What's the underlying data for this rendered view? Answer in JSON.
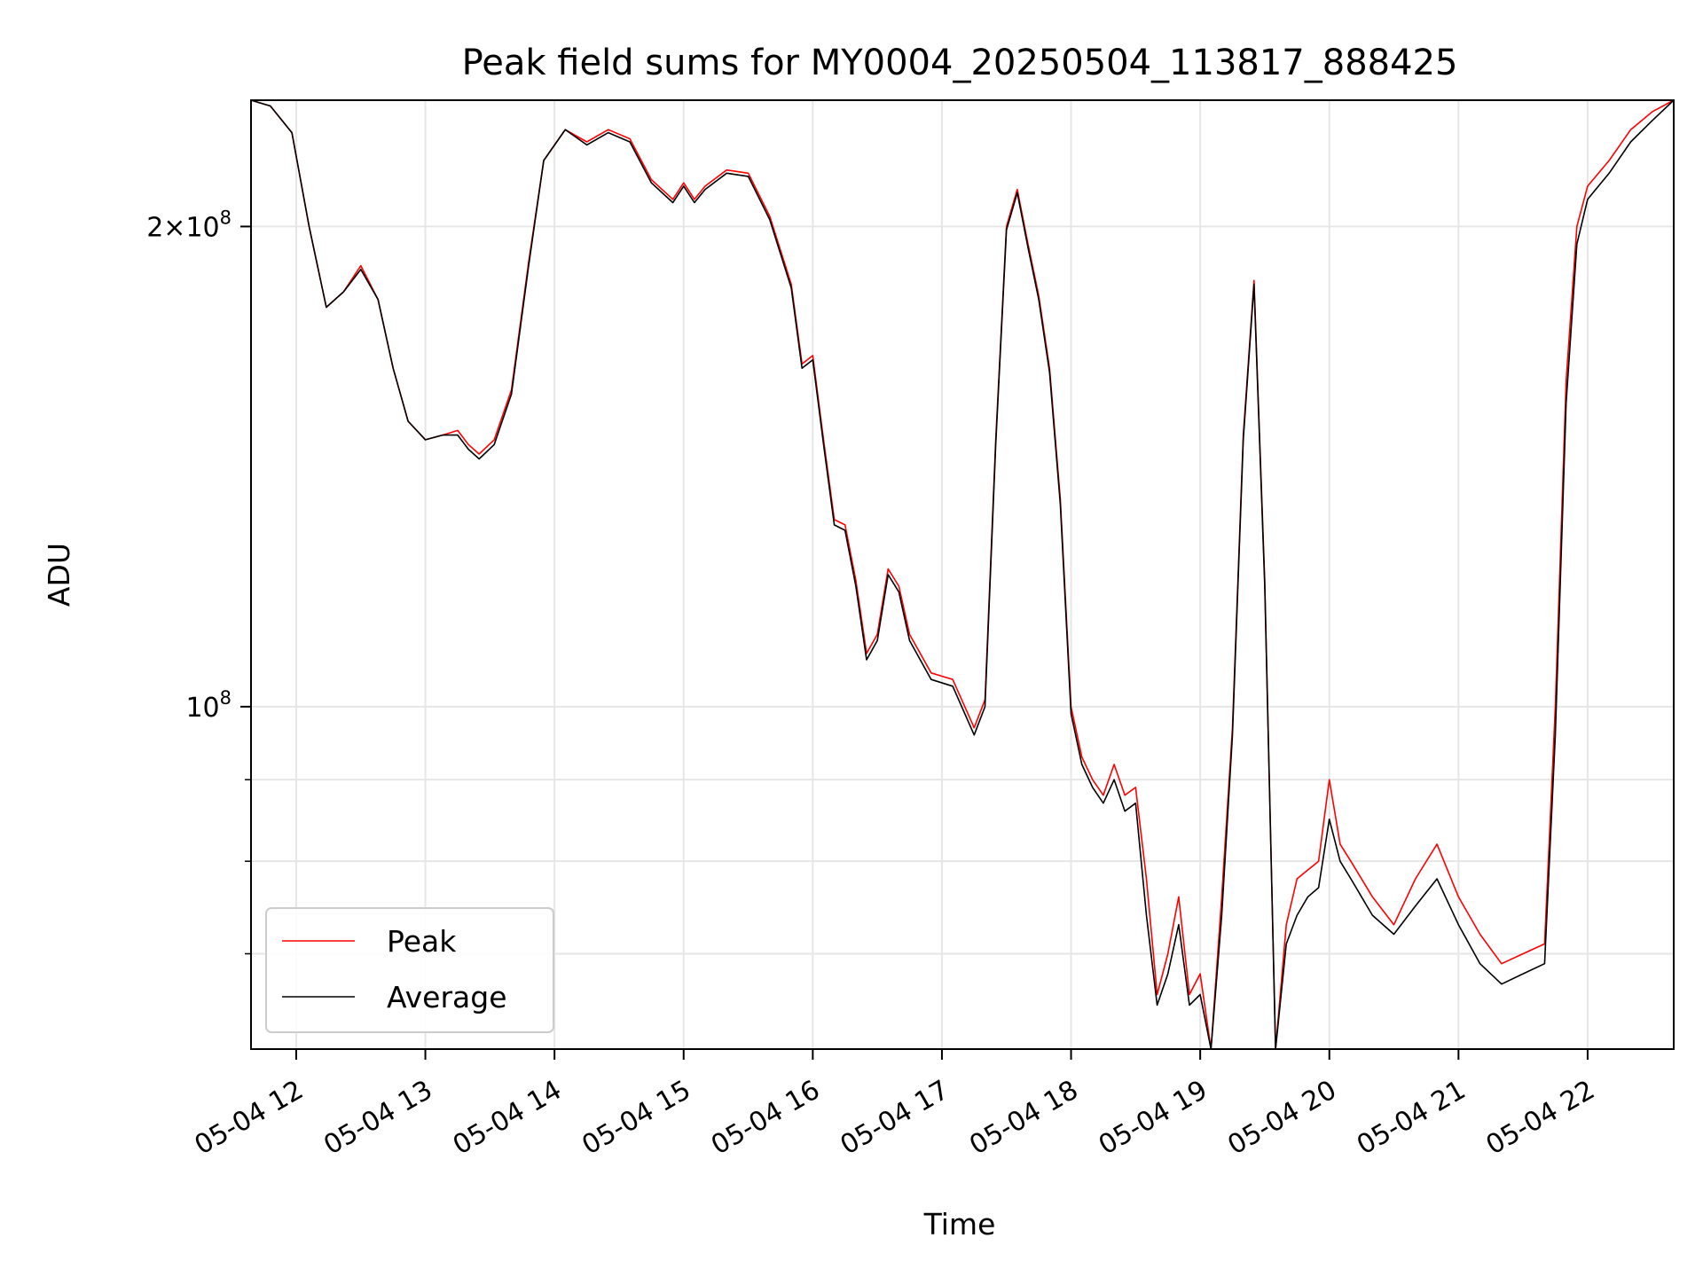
{
  "chart_data": {
    "type": "line",
    "title": "Peak field sums for MY0004_20250504_113817_888425",
    "xlabel": "Time",
    "ylabel": "ADU",
    "yscale": "log",
    "xlim": [
      "05-04 11:39",
      "05-04 22:40"
    ],
    "ylim": [
      61000000,
      240000000
    ],
    "x_ticks": [
      "05-04 12",
      "05-04 13",
      "05-04 14",
      "05-04 15",
      "05-04 16",
      "05-04 17",
      "05-04 18",
      "05-04 19",
      "05-04 20",
      "05-04 21",
      "05-04 22"
    ],
    "y_ticks": [
      {
        "value": 100000000,
        "base": "10",
        "exp": "8",
        "prefix": ""
      },
      {
        "value": 200000000,
        "base": "10",
        "exp": "8",
        "prefix": "2×"
      }
    ],
    "grid": true,
    "legend": "lower-left",
    "colors": {
      "Peak": "#ff0000",
      "Average": "#000000"
    },
    "x": [
      "05-04 11:39",
      "05-04 11:48",
      "05-04 11:58",
      "05-04 12:06",
      "05-04 12:14",
      "05-04 12:22",
      "05-04 12:30",
      "05-04 12:38",
      "05-04 12:45",
      "05-04 12:52",
      "05-04 13:00",
      "05-04 13:08",
      "05-04 13:15",
      "05-04 13:20",
      "05-04 13:25",
      "05-04 13:32",
      "05-04 13:40",
      "05-04 13:48",
      "05-04 13:55",
      "05-04 14:05",
      "05-04 14:15",
      "05-04 14:25",
      "05-04 14:35",
      "05-04 14:45",
      "05-04 14:55",
      "05-04 15:00",
      "05-04 15:05",
      "05-04 15:10",
      "05-04 15:20",
      "05-04 15:30",
      "05-04 15:40",
      "05-04 15:50",
      "05-04 15:55",
      "05-04 16:00",
      "05-04 16:05",
      "05-04 16:10",
      "05-04 16:15",
      "05-04 16:20",
      "05-04 16:25",
      "05-04 16:30",
      "05-04 16:35",
      "05-04 16:40",
      "05-04 16:45",
      "05-04 16:55",
      "05-04 17:05",
      "05-04 17:15",
      "05-04 17:20",
      "05-04 17:25",
      "05-04 17:30",
      "05-04 17:35",
      "05-04 17:40",
      "05-04 17:45",
      "05-04 17:50",
      "05-04 17:55",
      "05-04 18:00",
      "05-04 18:05",
      "05-04 18:10",
      "05-04 18:15",
      "05-04 18:20",
      "05-04 18:25",
      "05-04 18:30",
      "05-04 18:35",
      "05-04 18:40",
      "05-04 18:45",
      "05-04 18:50",
      "05-04 18:55",
      "05-04 19:00",
      "05-04 19:05",
      "05-04 19:10",
      "05-04 19:15",
      "05-04 19:20",
      "05-04 19:25",
      "05-04 19:30",
      "05-04 19:35",
      "05-04 19:40",
      "05-04 19:45",
      "05-04 19:50",
      "05-04 19:55",
      "05-04 20:00",
      "05-04 20:05",
      "05-04 20:10",
      "05-04 20:20",
      "05-04 20:30",
      "05-04 20:40",
      "05-04 20:50",
      "05-04 21:00",
      "05-04 21:10",
      "05-04 21:20",
      "05-04 21:30",
      "05-04 21:40",
      "05-04 21:45",
      "05-04 21:50",
      "05-04 21:55",
      "05-04 22:00",
      "05-04 22:10",
      "05-04 22:20",
      "05-04 22:30",
      "05-04 22:40"
    ],
    "series": [
      {
        "name": "Peak",
        "values": [
          240000000,
          238000000,
          229000000,
          200000000,
          178000000,
          182000000,
          189000000,
          180000000,
          163000000,
          151000000,
          147000000,
          148000000,
          149000000,
          146000000,
          144000000,
          147000000,
          158000000,
          190000000,
          220000000,
          230000000,
          226000000,
          230000000,
          227000000,
          214000000,
          208000000,
          213000000,
          208000000,
          212000000,
          217000000,
          216000000,
          203000000,
          184000000,
          164000000,
          166000000,
          147000000,
          131000000,
          130000000,
          120000000,
          108000000,
          111000000,
          122000000,
          119000000,
          111000000,
          105000000,
          104000000,
          97000000,
          101000000,
          147000000,
          200000000,
          211000000,
          195000000,
          181000000,
          163000000,
          135000000,
          100000000,
          93000000,
          90000000,
          88000000,
          92000000,
          88000000,
          89000000,
          78000000,
          66000000,
          70000000,
          76000000,
          66000000,
          68000000,
          61000000,
          76000000,
          97000000,
          148000000,
          185000000,
          120000000,
          61000000,
          73000000,
          78000000,
          79000000,
          80000000,
          90000000,
          82000000,
          80000000,
          76000000,
          73000000,
          78000000,
          82000000,
          76000000,
          72000000,
          69000000,
          70000000,
          71000000,
          100000000,
          160000000,
          200000000,
          212000000,
          220000000,
          230000000,
          236000000,
          240000000
        ]
      },
      {
        "name": "Average",
        "values": [
          240000000,
          238000000,
          229000000,
          200000000,
          178000000,
          182000000,
          188000000,
          180000000,
          163000000,
          151000000,
          147000000,
          148000000,
          148000000,
          145000000,
          143000000,
          146000000,
          157000000,
          189000000,
          220000000,
          230000000,
          225000000,
          229000000,
          226000000,
          213000000,
          207000000,
          212000000,
          207000000,
          211000000,
          216000000,
          215000000,
          202000000,
          183000000,
          163000000,
          165000000,
          146000000,
          130000000,
          129000000,
          119000000,
          107000000,
          110000000,
          121000000,
          118000000,
          110000000,
          104000000,
          103000000,
          96000000,
          100000000,
          146000000,
          199000000,
          210000000,
          194000000,
          180000000,
          162000000,
          134000000,
          99000000,
          92000000,
          89000000,
          87000000,
          90000000,
          86000000,
          87000000,
          74000000,
          65000000,
          68000000,
          73000000,
          65000000,
          66000000,
          60000000,
          74000000,
          96000000,
          147000000,
          184000000,
          119000000,
          60000000,
          71000000,
          74000000,
          76000000,
          77000000,
          85000000,
          80000000,
          78000000,
          74000000,
          72000000,
          75000000,
          78000000,
          73000000,
          69000000,
          67000000,
          68000000,
          69000000,
          96000000,
          155000000,
          195000000,
          208000000,
          216000000,
          226000000,
          233000000,
          240000000
        ]
      }
    ]
  }
}
